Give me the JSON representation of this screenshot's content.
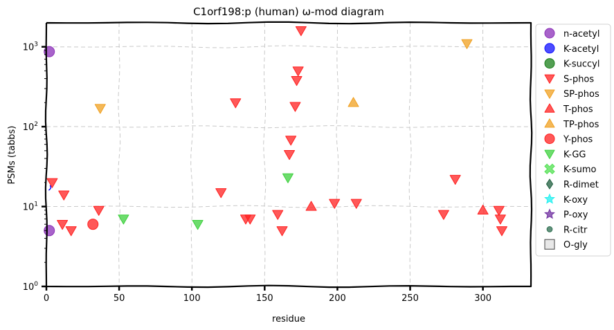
{
  "chart_data": {
    "type": "scatter",
    "title": "C1orf198:p (human) ω-mod diagram",
    "xlabel": "residue",
    "ylabel": "PSMs (tabbs)",
    "xlim": [
      0,
      333
    ],
    "ylim_log10": [
      0,
      3.3
    ],
    "yscale": "log",
    "grid": true,
    "legend_position": "right-outside",
    "x_ticks": [
      {
        "value": 0,
        "label": "0"
      },
      {
        "value": 50,
        "label": "50"
      },
      {
        "value": 100,
        "label": "100"
      },
      {
        "value": 150,
        "label": "150"
      },
      {
        "value": 200,
        "label": "200"
      },
      {
        "value": 250,
        "label": "250"
      },
      {
        "value": 300,
        "label": "300"
      }
    ],
    "y_ticks": [
      {
        "value": 1,
        "base": "10",
        "exp": "0"
      },
      {
        "value": 10,
        "base": "10",
        "exp": "1"
      },
      {
        "value": 100,
        "base": "10",
        "exp": "2"
      },
      {
        "value": 1000,
        "base": "10",
        "exp": "3"
      }
    ],
    "legend": [
      {
        "name": "n-acetyl",
        "marker": "circle",
        "color": "#8B2FB8"
      },
      {
        "name": "K-acetyl",
        "marker": "circle",
        "color": "#1010FF"
      },
      {
        "name": "K-succyl",
        "marker": "circle",
        "color": "#1A7F1A"
      },
      {
        "name": "S-phos",
        "marker": "triangle-down",
        "color": "#FF2020"
      },
      {
        "name": "SP-phos",
        "marker": "triangle-down",
        "color": "#F0A020"
      },
      {
        "name": "T-phos",
        "marker": "triangle-up",
        "color": "#FF2020"
      },
      {
        "name": "TP-phos",
        "marker": "triangle-up",
        "color": "#F0A020"
      },
      {
        "name": "Y-phos",
        "marker": "circle",
        "color": "#FF2020"
      },
      {
        "name": "K-GG",
        "marker": "triangle-down",
        "color": "#3CD03C"
      },
      {
        "name": "K-sumo",
        "marker": "x",
        "color": "#50E050"
      },
      {
        "name": "R-dimet",
        "marker": "diamond",
        "color": "#1E5E3E"
      },
      {
        "name": "K-oxy",
        "marker": "star",
        "color": "#20F0F0"
      },
      {
        "name": "P-oxy",
        "marker": "star",
        "color": "#7030A0"
      },
      {
        "name": "R-citr",
        "marker": "circle-small",
        "color": "#2E6E50"
      },
      {
        "name": "O-gly",
        "marker": "square",
        "color": "#E8E8E8"
      }
    ],
    "series": [
      {
        "name": "n-acetyl",
        "points": [
          {
            "x": 2,
            "y": 870
          },
          {
            "x": 2,
            "y": 5
          }
        ]
      },
      {
        "name": "S-phos",
        "points": [
          {
            "x": 175,
            "y": 1600
          },
          {
            "x": 173,
            "y": 500
          },
          {
            "x": 172,
            "y": 380
          },
          {
            "x": 130,
            "y": 200
          },
          {
            "x": 171,
            "y": 180
          },
          {
            "x": 168,
            "y": 68
          },
          {
            "x": 167,
            "y": 45
          },
          {
            "x": 4,
            "y": 20
          },
          {
            "x": 12,
            "y": 14
          },
          {
            "x": 120,
            "y": 15
          },
          {
            "x": 281,
            "y": 22
          },
          {
            "x": 36,
            "y": 9
          },
          {
            "x": 198,
            "y": 11
          },
          {
            "x": 213,
            "y": 11
          },
          {
            "x": 11,
            "y": 6
          },
          {
            "x": 17,
            "y": 5
          },
          {
            "x": 137,
            "y": 7
          },
          {
            "x": 140,
            "y": 7
          },
          {
            "x": 159,
            "y": 8
          },
          {
            "x": 162,
            "y": 5
          },
          {
            "x": 273,
            "y": 8
          },
          {
            "x": 311,
            "y": 9
          },
          {
            "x": 312,
            "y": 7
          },
          {
            "x": 313,
            "y": 5
          }
        ]
      },
      {
        "name": "SP-phos",
        "points": [
          {
            "x": 37,
            "y": 170
          },
          {
            "x": 289,
            "y": 1100
          }
        ]
      },
      {
        "name": "T-phos",
        "points": [
          {
            "x": 182,
            "y": 10
          },
          {
            "x": 300,
            "y": 9
          }
        ]
      },
      {
        "name": "TP-phos",
        "points": [
          {
            "x": 211,
            "y": 200
          }
        ]
      },
      {
        "name": "Y-phos",
        "points": [
          {
            "x": 32,
            "y": 6
          }
        ]
      },
      {
        "name": "K-GG",
        "points": [
          {
            "x": 166,
            "y": 23
          },
          {
            "x": 53,
            "y": 7
          },
          {
            "x": 104,
            "y": 6
          }
        ]
      },
      {
        "name": "K-acetyl",
        "points": [
          {
            "x": 3,
            "y": 17
          }
        ]
      }
    ]
  }
}
